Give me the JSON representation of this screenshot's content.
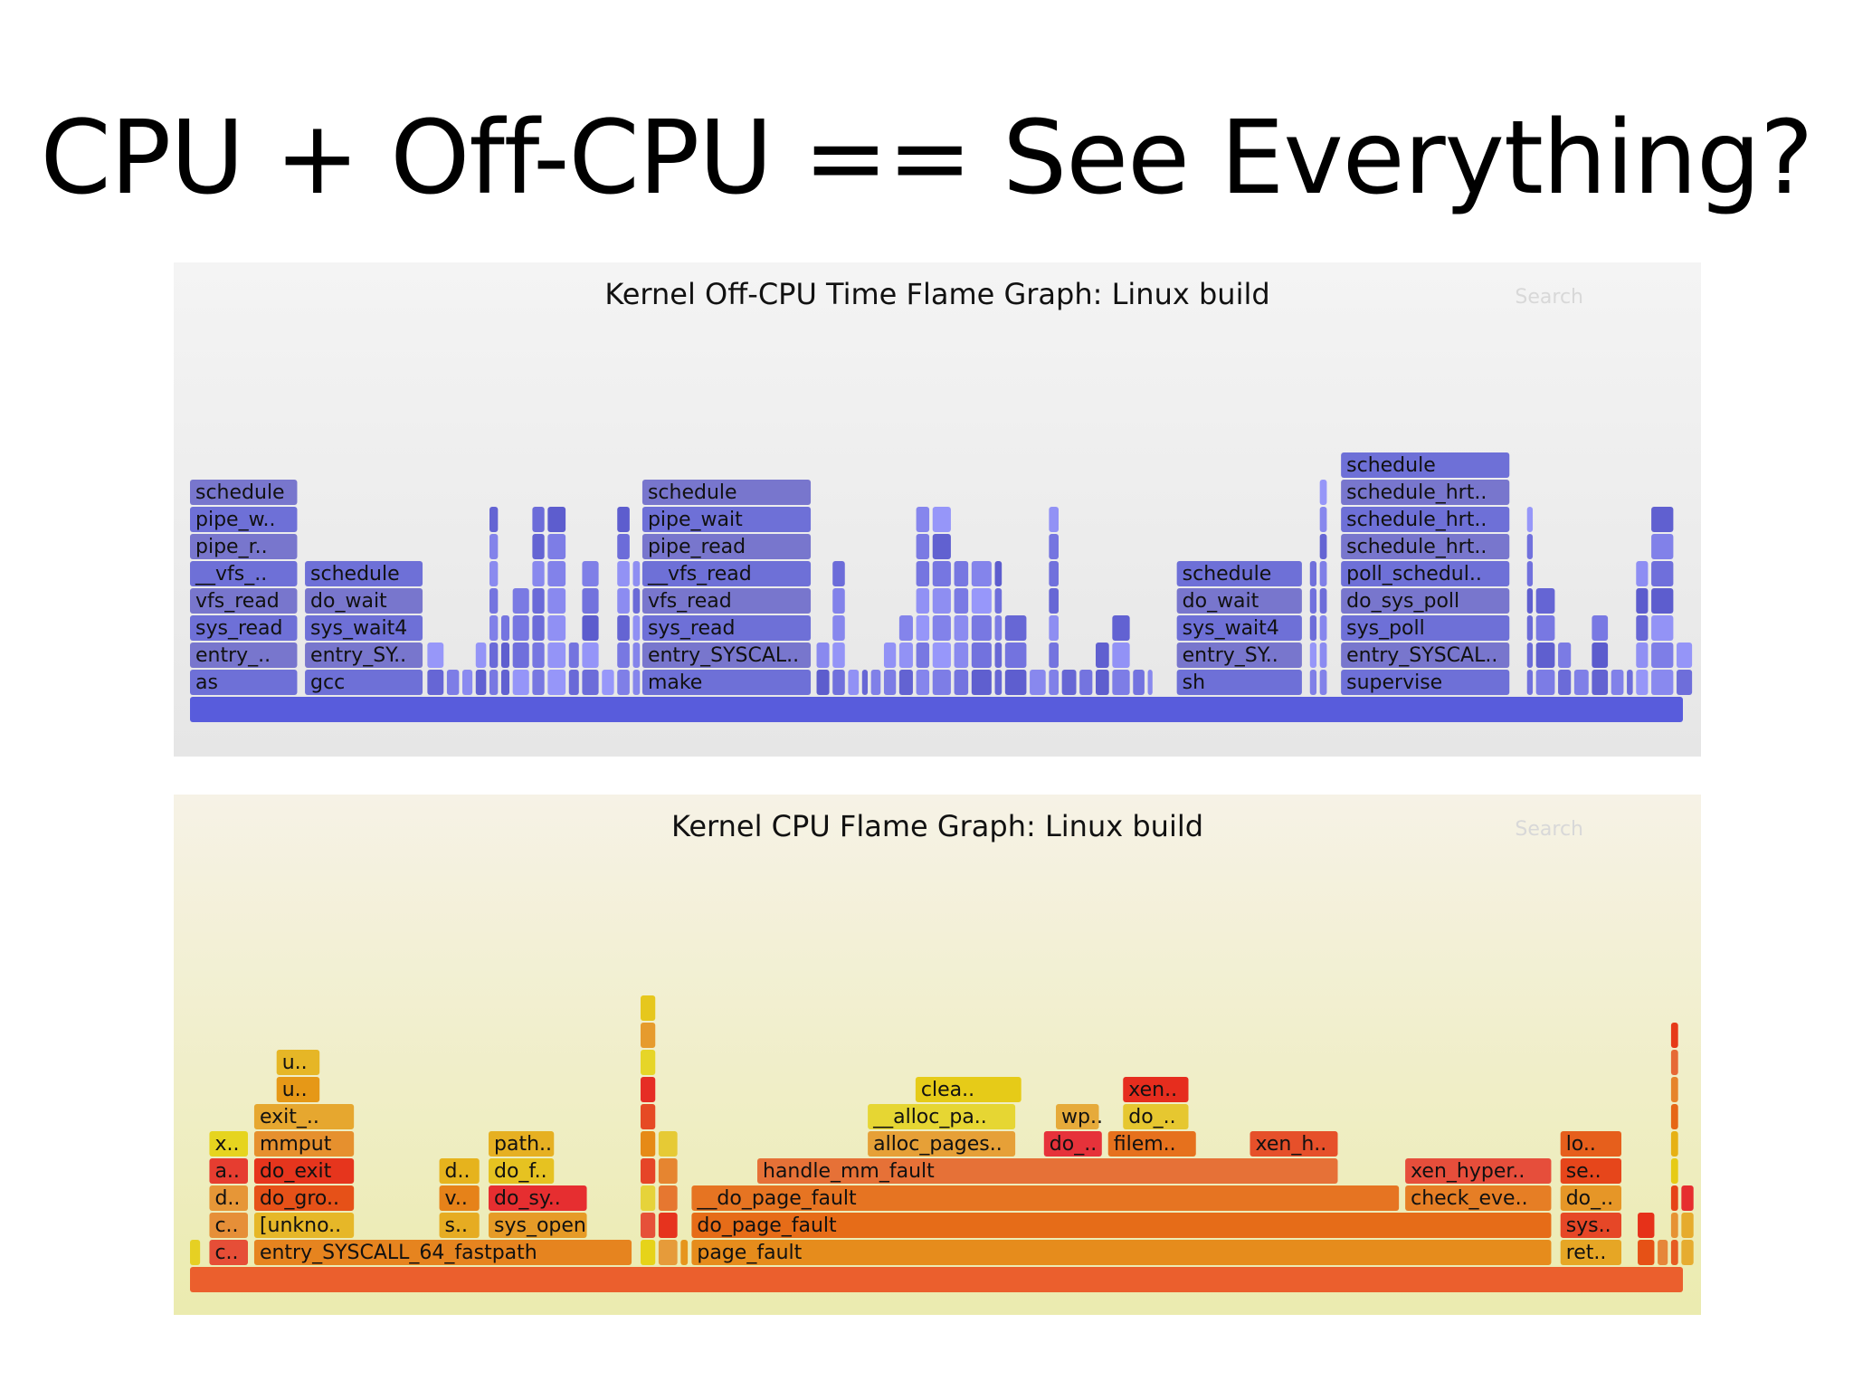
{
  "slide_title": "CPU + Off-CPU == See Everything?",
  "chart_data": [
    {
      "type": "flamegraph",
      "title": "Kernel Off-CPU Time Flame Graph: Linux build",
      "search_label": "Search",
      "palette": "blue",
      "depth_order": "bottom-up",
      "frames": [
        {
          "name": "as",
          "depth": 1,
          "start": 0.0,
          "width": 0.073
        },
        {
          "name": "entry_..",
          "depth": 2,
          "start": 0.0,
          "width": 0.073
        },
        {
          "name": "sys_read",
          "depth": 3,
          "start": 0.0,
          "width": 0.073
        },
        {
          "name": "vfs_read",
          "depth": 4,
          "start": 0.0,
          "width": 0.073
        },
        {
          "name": "__vfs_..",
          "depth": 5,
          "start": 0.0,
          "width": 0.073
        },
        {
          "name": "pipe_r..",
          "depth": 6,
          "start": 0.0,
          "width": 0.073
        },
        {
          "name": "pipe_w..",
          "depth": 7,
          "start": 0.0,
          "width": 0.073
        },
        {
          "name": "schedule",
          "depth": 8,
          "start": 0.0,
          "width": 0.073
        },
        {
          "name": "gcc",
          "depth": 1,
          "start": 0.077,
          "width": 0.08
        },
        {
          "name": "entry_SY..",
          "depth": 2,
          "start": 0.077,
          "width": 0.08
        },
        {
          "name": "sys_wait4",
          "depth": 3,
          "start": 0.077,
          "width": 0.08
        },
        {
          "name": "do_wait",
          "depth": 4,
          "start": 0.077,
          "width": 0.08
        },
        {
          "name": "schedule",
          "depth": 5,
          "start": 0.077,
          "width": 0.08
        },
        {
          "name": "make",
          "depth": 1,
          "start": 0.303,
          "width": 0.114
        },
        {
          "name": "entry_SYSCAL..",
          "depth": 2,
          "start": 0.303,
          "width": 0.114
        },
        {
          "name": "sys_read",
          "depth": 3,
          "start": 0.303,
          "width": 0.114
        },
        {
          "name": "vfs_read",
          "depth": 4,
          "start": 0.303,
          "width": 0.114
        },
        {
          "name": "__vfs_read",
          "depth": 5,
          "start": 0.303,
          "width": 0.114
        },
        {
          "name": "pipe_read",
          "depth": 6,
          "start": 0.303,
          "width": 0.114
        },
        {
          "name": "pipe_wait",
          "depth": 7,
          "start": 0.303,
          "width": 0.114
        },
        {
          "name": "schedule",
          "depth": 8,
          "start": 0.303,
          "width": 0.114
        },
        {
          "name": "sh",
          "depth": 1,
          "start": 0.661,
          "width": 0.085
        },
        {
          "name": "entry_SY..",
          "depth": 2,
          "start": 0.661,
          "width": 0.085
        },
        {
          "name": "sys_wait4",
          "depth": 3,
          "start": 0.661,
          "width": 0.085
        },
        {
          "name": "do_wait",
          "depth": 4,
          "start": 0.661,
          "width": 0.085
        },
        {
          "name": "schedule",
          "depth": 5,
          "start": 0.661,
          "width": 0.085
        },
        {
          "name": "supervise",
          "depth": 1,
          "start": 0.771,
          "width": 0.114
        },
        {
          "name": "entry_SYSCAL..",
          "depth": 2,
          "start": 0.771,
          "width": 0.114
        },
        {
          "name": "sys_poll",
          "depth": 3,
          "start": 0.771,
          "width": 0.114
        },
        {
          "name": "do_sys_poll",
          "depth": 4,
          "start": 0.771,
          "width": 0.114
        },
        {
          "name": "poll_schedul..",
          "depth": 5,
          "start": 0.771,
          "width": 0.114
        },
        {
          "name": "schedule_hrt..",
          "depth": 6,
          "start": 0.771,
          "width": 0.114
        },
        {
          "name": "schedule_hrt..",
          "depth": 7,
          "start": 0.771,
          "width": 0.114
        },
        {
          "name": "schedule_hrt..",
          "depth": 8,
          "start": 0.771,
          "width": 0.114
        },
        {
          "name": "schedule",
          "depth": 9,
          "start": 0.771,
          "width": 0.114
        }
      ]
    },
    {
      "type": "flamegraph",
      "title": "Kernel CPU Flame Graph: Linux build",
      "search_label": "Search",
      "palette": "hot",
      "depth_order": "bottom-up",
      "frames": [
        {
          "name": "c..",
          "depth": 1,
          "start": 0.013,
          "width": 0.027
        },
        {
          "name": "c..",
          "depth": 2,
          "start": 0.013,
          "width": 0.027
        },
        {
          "name": "d..",
          "depth": 3,
          "start": 0.013,
          "width": 0.027
        },
        {
          "name": "a..",
          "depth": 4,
          "start": 0.013,
          "width": 0.027
        },
        {
          "name": "x..",
          "depth": 5,
          "start": 0.013,
          "width": 0.027
        },
        {
          "name": "entry_SYSCALL_64_fastpath",
          "depth": 1,
          "start": 0.043,
          "width": 0.254
        },
        {
          "name": "[unkno..",
          "depth": 2,
          "start": 0.043,
          "width": 0.068
        },
        {
          "name": "do_gro..",
          "depth": 3,
          "start": 0.043,
          "width": 0.068
        },
        {
          "name": "do_exit",
          "depth": 4,
          "start": 0.043,
          "width": 0.068
        },
        {
          "name": "mmput",
          "depth": 5,
          "start": 0.043,
          "width": 0.068
        },
        {
          "name": "exit_..",
          "depth": 6,
          "start": 0.043,
          "width": 0.068
        },
        {
          "name": "u..",
          "depth": 7,
          "start": 0.058,
          "width": 0.03
        },
        {
          "name": "u..",
          "depth": 8,
          "start": 0.058,
          "width": 0.03
        },
        {
          "name": "s..",
          "depth": 2,
          "start": 0.167,
          "width": 0.028
        },
        {
          "name": "v..",
          "depth": 3,
          "start": 0.167,
          "width": 0.028
        },
        {
          "name": "d..",
          "depth": 4,
          "start": 0.167,
          "width": 0.028
        },
        {
          "name": "sys_open",
          "depth": 2,
          "start": 0.2,
          "width": 0.067
        },
        {
          "name": "do_sy..",
          "depth": 3,
          "start": 0.2,
          "width": 0.067
        },
        {
          "name": "do_f..",
          "depth": 4,
          "start": 0.2,
          "width": 0.045
        },
        {
          "name": "path..",
          "depth": 5,
          "start": 0.2,
          "width": 0.045
        },
        {
          "name": "page_fault",
          "depth": 1,
          "start": 0.336,
          "width": 0.577
        },
        {
          "name": "do_page_fault",
          "depth": 2,
          "start": 0.336,
          "width": 0.577
        },
        {
          "name": "__do_page_fault",
          "depth": 3,
          "start": 0.336,
          "width": 0.475
        },
        {
          "name": "handle_mm_fault",
          "depth": 4,
          "start": 0.38,
          "width": 0.39
        },
        {
          "name": "alloc_pages..",
          "depth": 5,
          "start": 0.454,
          "width": 0.1
        },
        {
          "name": "__alloc_pa..",
          "depth": 6,
          "start": 0.454,
          "width": 0.1
        },
        {
          "name": "clea..",
          "depth": 7,
          "start": 0.486,
          "width": 0.072
        },
        {
          "name": "do_..",
          "depth": 5,
          "start": 0.572,
          "width": 0.04
        },
        {
          "name": "wp..",
          "depth": 6,
          "start": 0.58,
          "width": 0.03
        },
        {
          "name": "filem..",
          "depth": 5,
          "start": 0.615,
          "width": 0.06
        },
        {
          "name": "do_..",
          "depth": 6,
          "start": 0.625,
          "width": 0.045
        },
        {
          "name": "xen..",
          "depth": 7,
          "start": 0.625,
          "width": 0.045
        },
        {
          "name": "xen_h..",
          "depth": 5,
          "start": 0.71,
          "width": 0.06
        },
        {
          "name": "check_eve..",
          "depth": 3,
          "start": 0.814,
          "width": 0.099
        },
        {
          "name": "xen_hyper..",
          "depth": 4,
          "start": 0.814,
          "width": 0.099
        },
        {
          "name": "ret..",
          "depth": 1,
          "start": 0.918,
          "width": 0.042
        },
        {
          "name": "sys..",
          "depth": 2,
          "start": 0.918,
          "width": 0.042
        },
        {
          "name": "do_..",
          "depth": 3,
          "start": 0.918,
          "width": 0.042
        },
        {
          "name": "se..",
          "depth": 4,
          "start": 0.918,
          "width": 0.042
        },
        {
          "name": "lo..",
          "depth": 5,
          "start": 0.918,
          "width": 0.042
        }
      ]
    }
  ]
}
